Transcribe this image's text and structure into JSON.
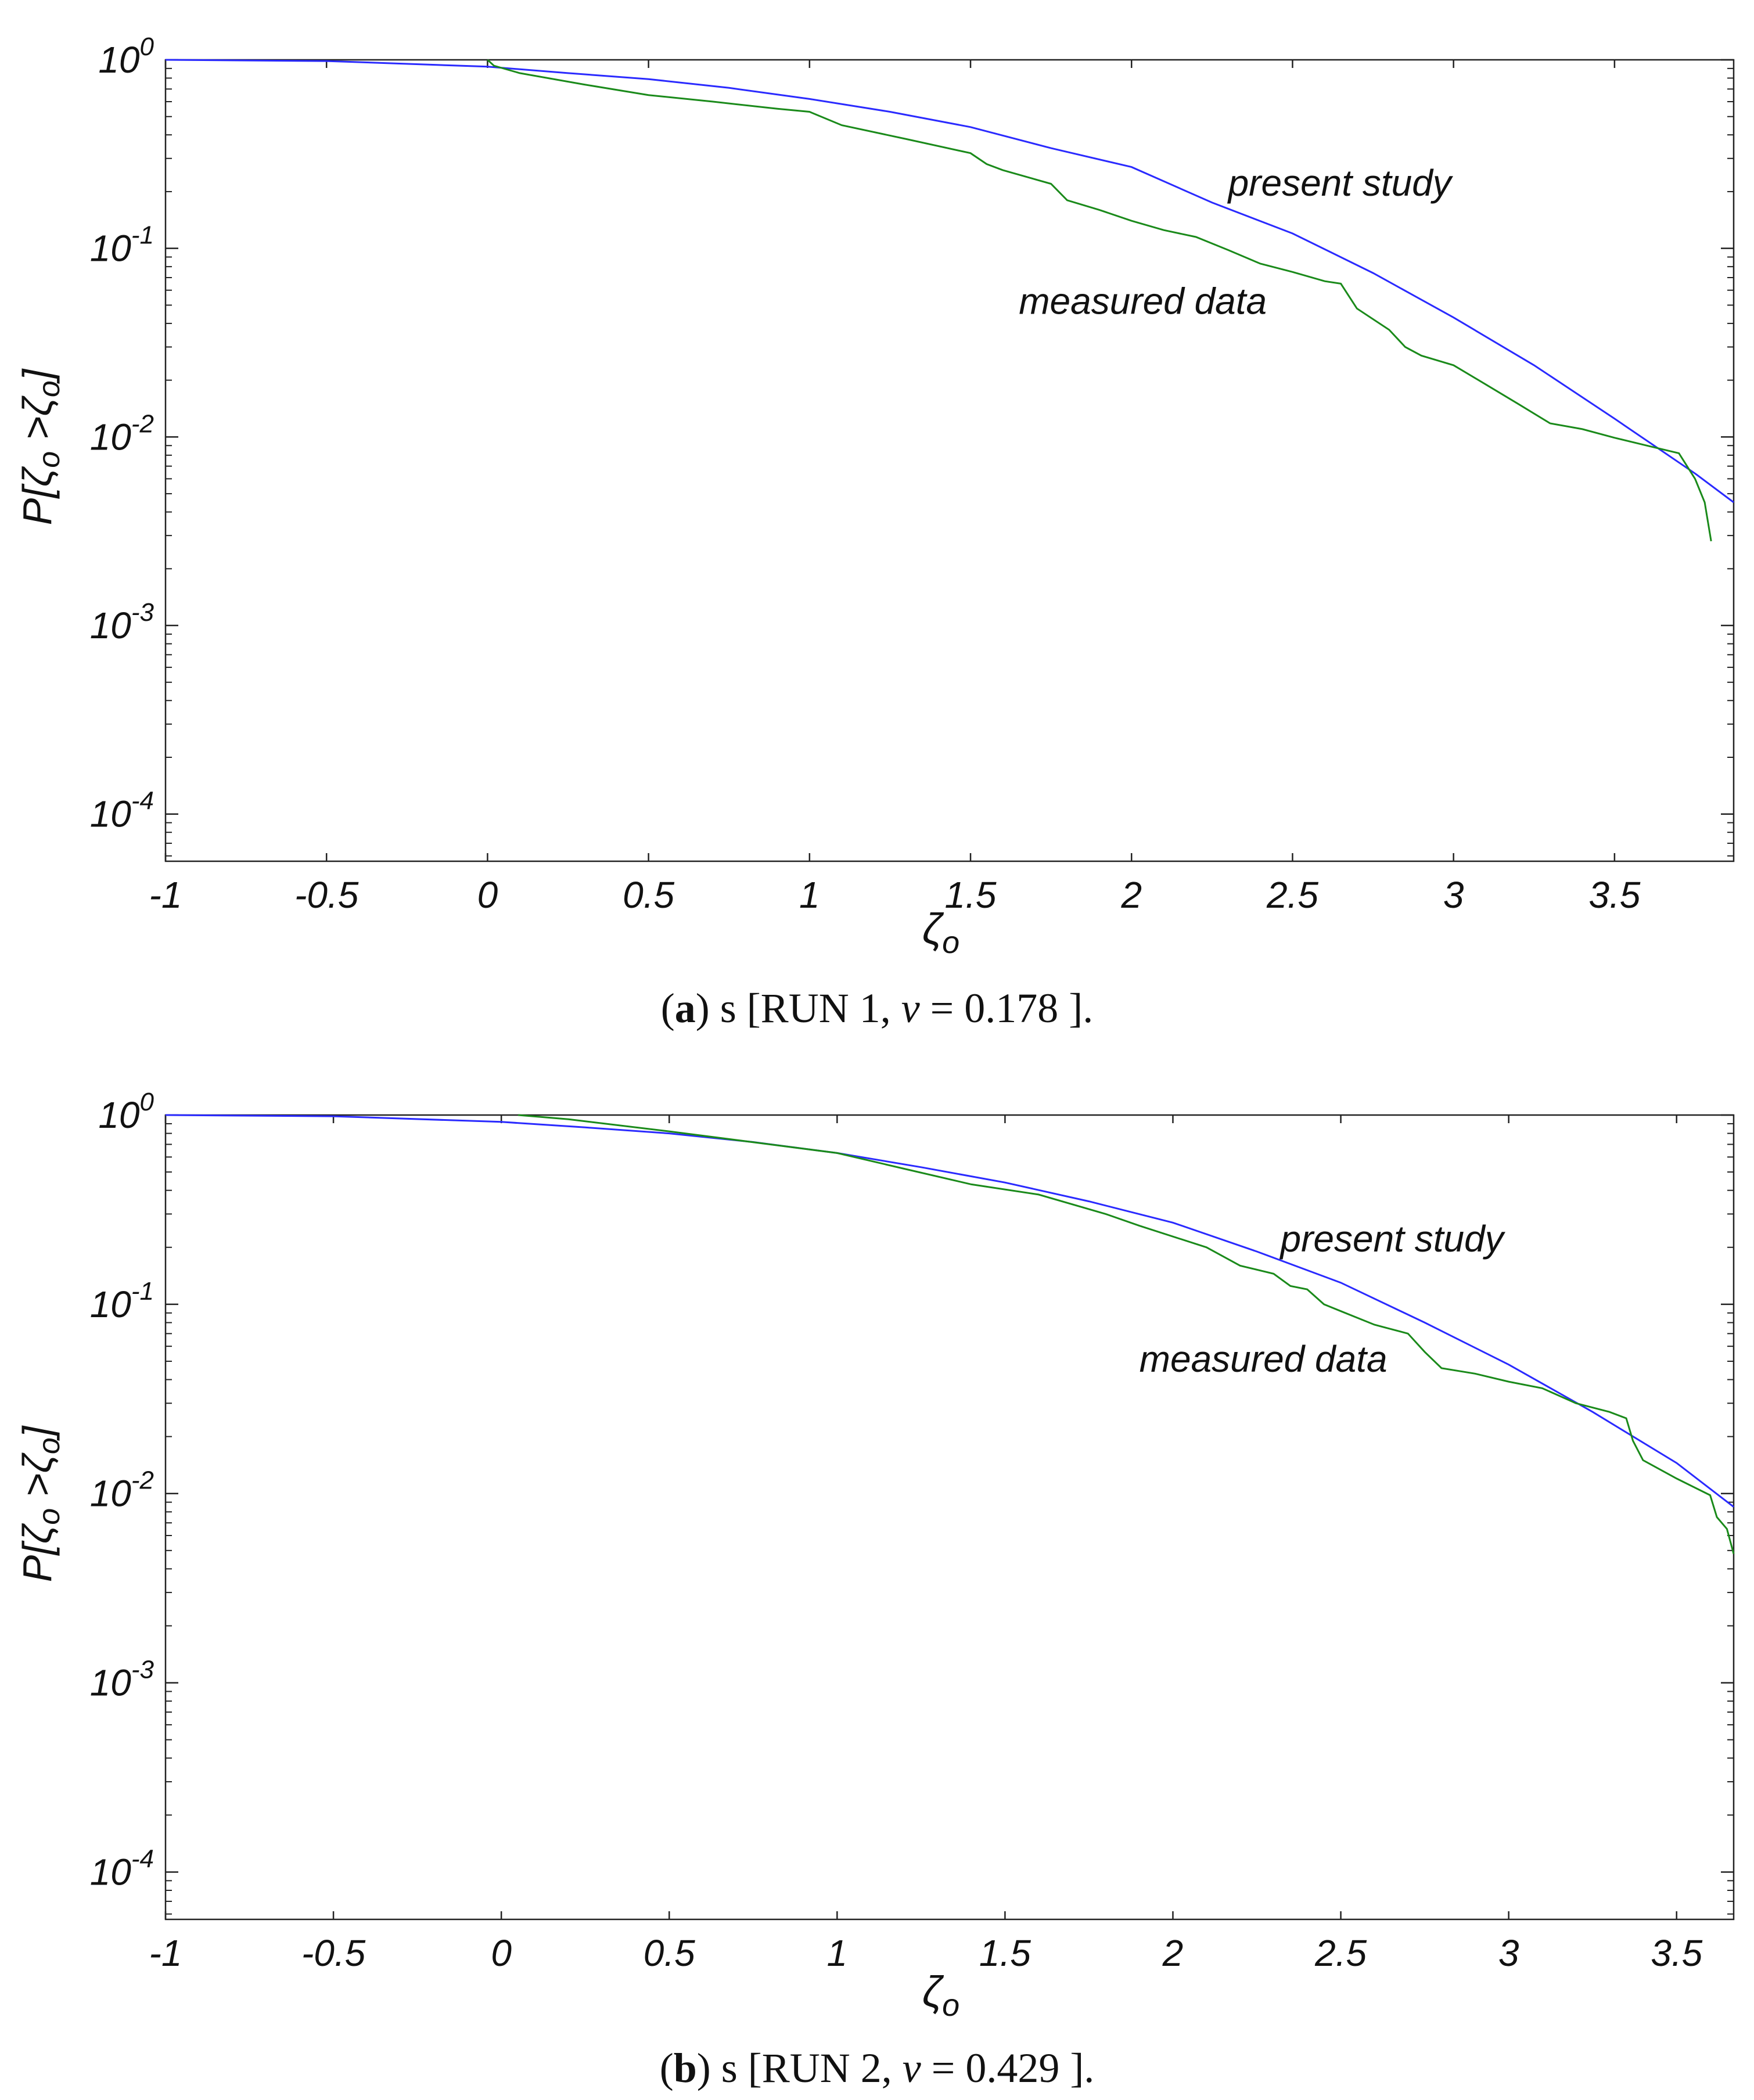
{
  "chart_data": [
    {
      "type": "line",
      "caption": {
        "letter": "a",
        "text": " s [RUN 1,  ",
        "nu_symbol": "ν",
        "eq": " = ",
        "nu_value": "0.178",
        "tail": " ]."
      },
      "xlabel": {
        "main": "ζ",
        "sub": "o"
      },
      "ylabel": {
        "p": "P[",
        "zeta": "ζ",
        "sub1": "o",
        "gt": " >",
        "sub2": "o",
        "close": "]"
      },
      "xlim": [
        -1,
        3.87
      ],
      "ylim": [
        5.62e-05,
        1
      ],
      "yscale": "log",
      "xticks": [
        -1,
        -0.5,
        0,
        0.5,
        1,
        1.5,
        2,
        2.5,
        3,
        3.5
      ],
      "xtick_labels": [
        "-1",
        "-0.5",
        "0",
        "0.5",
        "1",
        "1.5",
        "2",
        "2.5",
        "3",
        "3.5"
      ],
      "yticks": [
        {
          "value": 1,
          "base": "10",
          "exp": "0"
        },
        {
          "value": 0.1,
          "base": "10",
          "exp": "-1"
        },
        {
          "value": 0.01,
          "base": "10",
          "exp": "-2"
        },
        {
          "value": 0.001,
          "base": "10",
          "exp": "-3"
        },
        {
          "value": 0.0001,
          "base": "10",
          "exp": "-4"
        }
      ],
      "series": [
        {
          "name": "present study",
          "color": "#2a2aff",
          "x": [
            -1,
            -0.5,
            0,
            0.25,
            0.5,
            0.75,
            1,
            1.25,
            1.5,
            1.75,
            2,
            2.25,
            2.5,
            2.75,
            3,
            3.25,
            3.5,
            3.75,
            3.87
          ],
          "y": [
            1,
            0.985,
            0.92,
            0.85,
            0.79,
            0.71,
            0.62,
            0.53,
            0.44,
            0.34,
            0.27,
            0.175,
            0.12,
            0.074,
            0.043,
            0.024,
            0.0125,
            0.0064,
            0.0045
          ]
        },
        {
          "name": "measured data",
          "color": "#1a8a1a",
          "x": [
            0.0,
            0.02,
            0.1,
            0.3,
            0.5,
            0.7,
            0.9,
            1.0,
            1.1,
            1.3,
            1.5,
            1.55,
            1.6,
            1.75,
            1.8,
            1.9,
            2.0,
            2.1,
            2.2,
            2.3,
            2.4,
            2.5,
            2.6,
            2.65,
            2.7,
            2.8,
            2.85,
            2.9,
            3.0,
            3.1,
            3.2,
            3.3,
            3.4,
            3.5,
            3.6,
            3.7,
            3.75,
            3.78,
            3.8
          ],
          "y": [
            1.0,
            0.93,
            0.85,
            0.74,
            0.65,
            0.6,
            0.55,
            0.53,
            0.45,
            0.38,
            0.32,
            0.28,
            0.26,
            0.22,
            0.18,
            0.16,
            0.14,
            0.125,
            0.115,
            0.098,
            0.083,
            0.075,
            0.067,
            0.065,
            0.048,
            0.037,
            0.03,
            0.027,
            0.024,
            0.019,
            0.015,
            0.0118,
            0.011,
            0.0099,
            0.009,
            0.0082,
            0.006,
            0.0045,
            0.0028
          ]
        }
      ],
      "annotations": [
        {
          "text": "present study",
          "x": 2.3,
          "y": 0.19
        },
        {
          "text": "measured data",
          "x": 1.65,
          "y": 0.045
        }
      ],
      "grid": false
    },
    {
      "type": "line",
      "caption": {
        "letter": "b",
        "text": " s [RUN 2,  ",
        "nu_symbol": "ν",
        "eq": " = ",
        "nu_value": "0.429",
        "tail": " ]."
      },
      "xlabel": {
        "main": "ζ",
        "sub": "o"
      },
      "ylabel": {
        "p": "P[",
        "zeta": "ζ",
        "sub1": "o",
        "gt": " >",
        "sub2": "o",
        "close": "]"
      },
      "xlim": [
        -1,
        3.67
      ],
      "ylim": [
        5.62e-05,
        1
      ],
      "yscale": "log",
      "xticks": [
        -1,
        -0.5,
        0,
        0.5,
        1,
        1.5,
        2,
        2.5,
        3,
        3.5
      ],
      "xtick_labels": [
        "-1",
        "-0.5",
        "0",
        "0.5",
        "1",
        "1.5",
        "2",
        "2.5",
        "3",
        "3.5"
      ],
      "yticks": [
        {
          "value": 1,
          "base": "10",
          "exp": "0"
        },
        {
          "value": 0.1,
          "base": "10",
          "exp": "-1"
        },
        {
          "value": 0.01,
          "base": "10",
          "exp": "-2"
        },
        {
          "value": 0.001,
          "base": "10",
          "exp": "-3"
        },
        {
          "value": 0.0001,
          "base": "10",
          "exp": "-4"
        }
      ],
      "series": [
        {
          "name": "present study",
          "color": "#2a2aff",
          "x": [
            -1,
            -0.5,
            0,
            0.25,
            0.5,
            0.75,
            1,
            1.25,
            1.5,
            1.75,
            2,
            2.25,
            2.5,
            2.75,
            3,
            3.25,
            3.5,
            3.67
          ],
          "y": [
            1,
            0.985,
            0.92,
            0.86,
            0.8,
            0.72,
            0.63,
            0.53,
            0.44,
            0.35,
            0.27,
            0.19,
            0.13,
            0.08,
            0.048,
            0.027,
            0.0145,
            0.0085
          ]
        },
        {
          "name": "measured data",
          "color": "#1a8a1a",
          "x": [
            0.05,
            0.2,
            0.5,
            0.8,
            1.0,
            1.2,
            1.4,
            1.6,
            1.8,
            1.9,
            2.1,
            2.2,
            2.3,
            2.35,
            2.4,
            2.45,
            2.5,
            2.6,
            2.7,
            2.75,
            2.8,
            2.9,
            3.0,
            3.1,
            3.2,
            3.3,
            3.35,
            3.37,
            3.4,
            3.5,
            3.6,
            3.62,
            3.65,
            3.67
          ],
          "y": [
            1.0,
            0.95,
            0.82,
            0.7,
            0.63,
            0.52,
            0.43,
            0.38,
            0.3,
            0.26,
            0.2,
            0.16,
            0.145,
            0.125,
            0.12,
            0.1,
            0.092,
            0.078,
            0.07,
            0.056,
            0.046,
            0.043,
            0.039,
            0.036,
            0.03,
            0.027,
            0.025,
            0.019,
            0.015,
            0.012,
            0.0098,
            0.0075,
            0.0065,
            0.0048
          ]
        }
      ],
      "annotations": [
        {
          "text": "present study",
          "x": 2.32,
          "y": 0.19
        },
        {
          "text": "measured data",
          "x": 1.9,
          "y": 0.044
        }
      ],
      "grid": false
    }
  ]
}
